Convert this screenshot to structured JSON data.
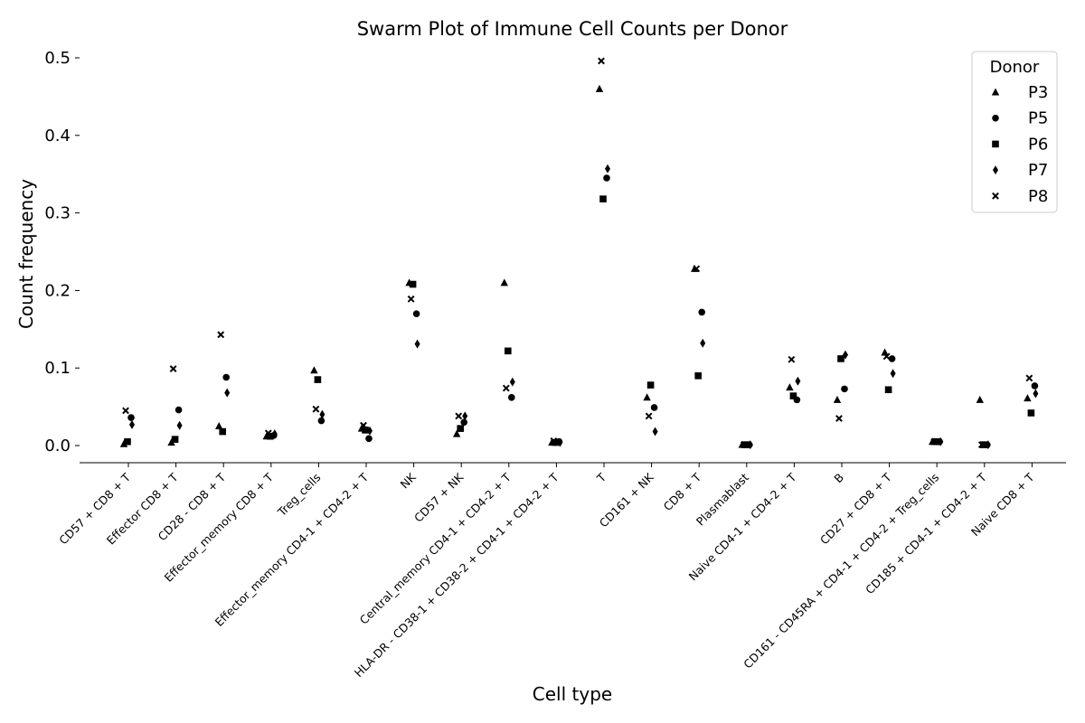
{
  "chart_data": {
    "type": "scatter",
    "title": "Swarm Plot of Immune Cell Counts per Donor",
    "xlabel": "Cell type",
    "ylabel": "Count frequency",
    "ylim": [
      -0.024,
      0.52
    ],
    "yticks": [
      0.0,
      0.1,
      0.2,
      0.3,
      0.4,
      0.5
    ],
    "ytick_labels": [
      "0.0",
      "0.1",
      "0.2",
      "0.3",
      "0.4",
      "0.5"
    ],
    "grid": false,
    "legend": {
      "title": "Donor",
      "placement": "top-right"
    },
    "categories": [
      "CD57 + CD8 + T",
      "Effector CD8 + T",
      "CD28 - CD8 + T",
      "Effector_memory CD8 + T",
      "Treg_cells",
      "Effector_memory CD4-1 + CD4-2 + T",
      "NK",
      "CD57 + NK",
      "Central_memory CD4-1 + CD4-2 + T",
      "HLA-DR - CD38-1 + CD38-2 + CD4-1 + CD4-2 + T",
      "T",
      "CD161 + NK",
      "CD8 + T",
      "Plasmablast",
      "Naive CD4-1 + CD4-2 + T",
      "B",
      "CD27 + CD8 + T",
      "CD161 - CD45RA + CD4-1 + CD4-2 + Treg_cells",
      "CD185 + CD4-1 + CD4-2 + T",
      "Naive CD8 + T"
    ],
    "series": [
      {
        "name": "P3",
        "marker": "triangle",
        "values": [
          0.002,
          0.004,
          0.025,
          0.012,
          0.097,
          0.022,
          0.21,
          0.015,
          0.21,
          0.004,
          0.46,
          0.062,
          0.228,
          0.001,
          0.075,
          0.059,
          0.12,
          0.005,
          0.059,
          0.061
        ]
      },
      {
        "name": "P5",
        "marker": "circle",
        "values": [
          0.036,
          0.046,
          0.088,
          0.013,
          0.032,
          0.009,
          0.17,
          0.03,
          0.062,
          0.005,
          0.345,
          0.049,
          0.172,
          0.001,
          0.059,
          0.073,
          0.112,
          0.005,
          0.001,
          0.077
        ]
      },
      {
        "name": "P6",
        "marker": "square",
        "values": [
          0.005,
          0.008,
          0.018,
          0.012,
          0.085,
          0.02,
          0.208,
          0.022,
          0.122,
          0.004,
          0.318,
          0.078,
          0.09,
          0.001,
          0.064,
          0.112,
          0.072,
          0.005,
          0.001,
          0.042
        ]
      },
      {
        "name": "P7",
        "marker": "diamond",
        "values": [
          0.027,
          0.026,
          0.068,
          0.015,
          0.04,
          0.019,
          0.131,
          0.038,
          0.082,
          0.004,
          0.357,
          0.018,
          0.132,
          0.001,
          0.083,
          0.117,
          0.093,
          0.005,
          0.001,
          0.067
        ]
      },
      {
        "name": "P8",
        "marker": "x",
        "values": [
          0.045,
          0.099,
          0.143,
          0.016,
          0.047,
          0.026,
          0.189,
          0.038,
          0.074,
          0.006,
          0.496,
          0.038,
          0.228,
          0.001,
          0.111,
          0.035,
          0.115,
          0.005,
          0.001,
          0.087
        ]
      }
    ]
  }
}
